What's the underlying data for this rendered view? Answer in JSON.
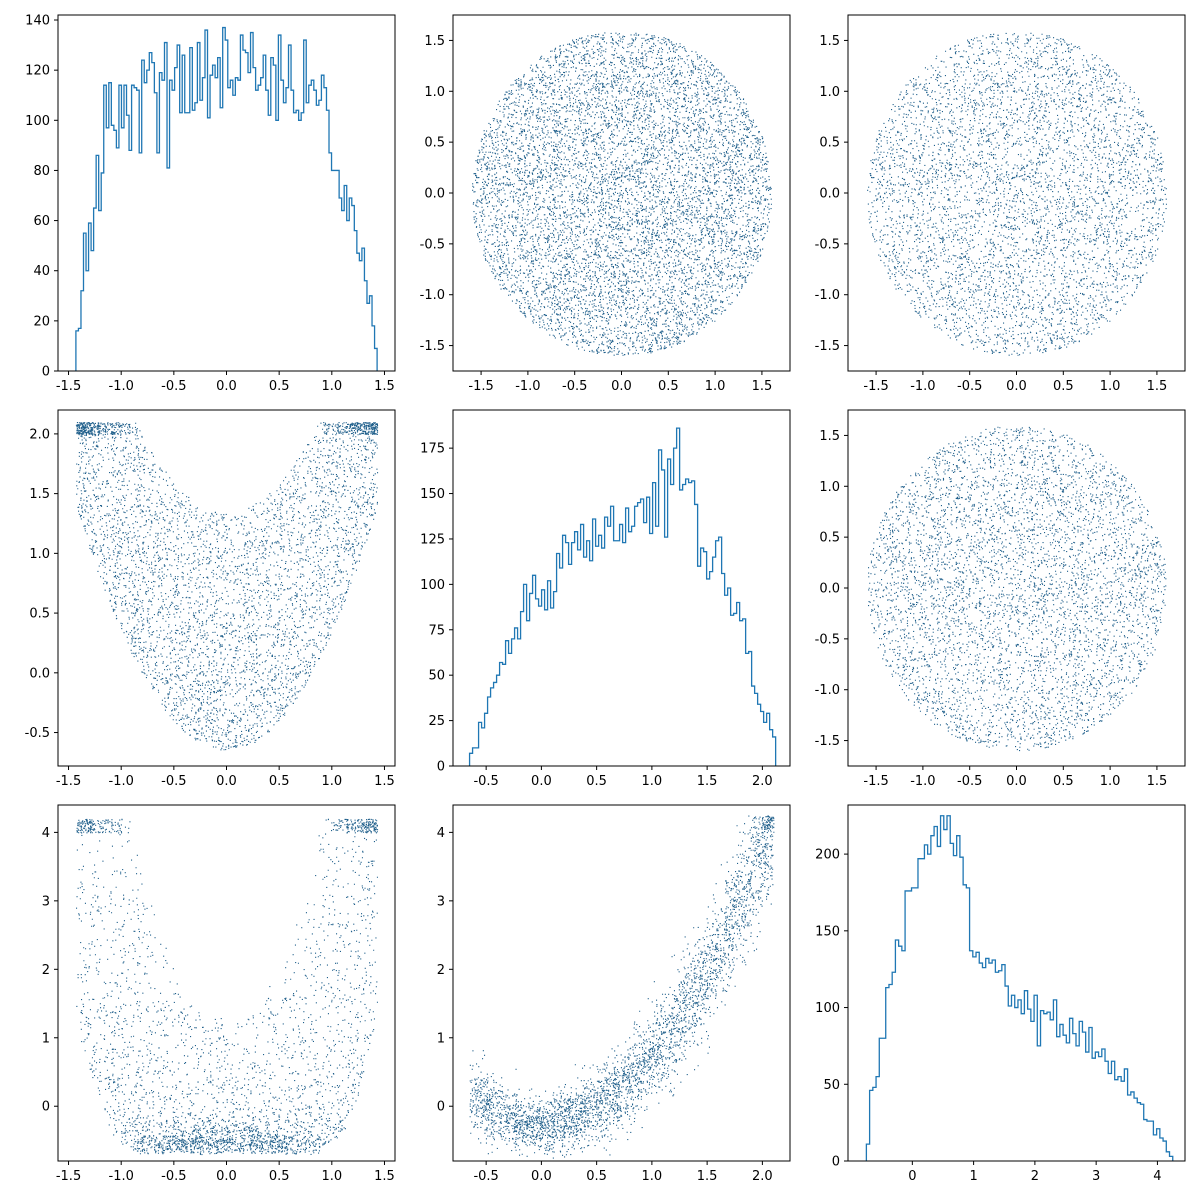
{
  "chart_data": [
    {
      "panel": "hist-x1",
      "type": "histogram",
      "x_range": [
        -1.6,
        1.6
      ],
      "ylim": [
        0,
        142
      ],
      "x_ticks": [
        -1.5,
        -1.0,
        -0.5,
        0.0,
        0.5,
        1.0,
        1.5
      ],
      "y_ticks": [
        0,
        20,
        40,
        60,
        80,
        100,
        120,
        140
      ],
      "bin_range": [
        -1.43,
        1.43
      ],
      "counts": [
        16,
        17,
        32,
        55,
        40,
        59,
        48,
        65,
        86,
        64,
        79,
        114,
        97,
        115,
        98,
        96,
        89,
        114,
        97,
        114,
        102,
        88,
        114,
        113,
        112,
        87,
        124,
        115,
        120,
        127,
        123,
        111,
        87,
        119,
        116,
        131,
        81,
        116,
        112,
        121,
        130,
        103,
        126,
        103,
        103,
        129,
        104,
        107,
        131,
        108,
        117,
        136,
        101,
        118,
        122,
        117,
        125,
        105,
        137,
        132,
        113,
        116,
        110,
        117,
        116,
        134,
        128,
        127,
        119,
        135,
        121,
        112,
        114,
        117,
        126,
        112,
        102,
        125,
        122,
        100,
        134,
        116,
        107,
        113,
        130,
        112,
        103,
        104,
        100,
        103,
        132,
        107,
        114,
        116,
        112,
        106,
        108,
        118,
        113,
        104,
        87,
        80,
        80,
        80,
        69,
        64,
        74,
        60,
        69,
        66,
        56,
        47,
        44,
        49,
        36,
        27,
        30,
        18,
        9
      ]
    },
    {
      "panel": "scatter-x2-vs-x1",
      "type": "scatter",
      "shape": "disk",
      "center": [
        0.0,
        0.0
      ],
      "radius": 1.6,
      "n_points": 9000,
      "xlim": [
        -1.8,
        1.8
      ],
      "ylim": [
        -1.75,
        1.75
      ],
      "x_ticks": [
        -1.5,
        -1.0,
        -0.5,
        0.0,
        0.5,
        1.0,
        1.5
      ],
      "y_ticks": [
        -1.5,
        -1.0,
        -0.5,
        0.0,
        0.5,
        1.0,
        1.5
      ]
    },
    {
      "panel": "scatter-x3-vs-x1",
      "type": "scatter",
      "shape": "disk",
      "center": [
        0.0,
        0.0
      ],
      "radius": 1.6,
      "n_points": 9000,
      "xlim": [
        -1.8,
        1.8
      ],
      "ylim": [
        -1.75,
        1.75
      ],
      "x_ticks": [
        -1.5,
        -1.0,
        -0.5,
        0.0,
        0.5,
        1.0,
        1.5
      ],
      "y_ticks": [
        -1.5,
        -1.0,
        -0.5,
        0.0,
        0.5,
        1.0,
        1.5
      ]
    },
    {
      "panel": "scatter-x1-vs-y",
      "type": "scatter",
      "shape": "parabola-band",
      "relation": "y = x^2 + u, u in [-0.65, 1.35]",
      "x_range": [
        -1.43,
        1.43
      ],
      "n_points": 9000,
      "xlim": [
        -1.6,
        1.6
      ],
      "ylim": [
        -0.78,
        2.2
      ],
      "x_ticks": [
        -1.5,
        -1.0,
        -0.5,
        0.0,
        0.5,
        1.0,
        1.5
      ],
      "y_ticks": [
        -0.5,
        0.0,
        0.5,
        1.0,
        1.5,
        2.0
      ]
    },
    {
      "panel": "hist-x2",
      "type": "histogram",
      "x_range": [
        -0.8,
        2.25
      ],
      "ylim": [
        0,
        196
      ],
      "x_ticks": [
        -0.5,
        0.0,
        0.5,
        1.0,
        1.5,
        2.0
      ],
      "y_ticks": [
        0,
        25,
        50,
        75,
        100,
        125,
        150,
        175
      ],
      "bin_range": [
        -0.65,
        2.12
      ],
      "counts": [
        7,
        10,
        10,
        24,
        21,
        29,
        38,
        43,
        46,
        50,
        57,
        56,
        69,
        62,
        70,
        76,
        70,
        85,
        100,
        80,
        95,
        105,
        92,
        88,
        97,
        86,
        102,
        87,
        96,
        117,
        109,
        127,
        123,
        111,
        123,
        129,
        119,
        133,
        115,
        124,
        113,
        136,
        121,
        127,
        120,
        137,
        132,
        143,
        124,
        124,
        133,
        123,
        142,
        129,
        132,
        143,
        145,
        147,
        134,
        148,
        128,
        156,
        132,
        174,
        163,
        126,
        169,
        155,
        175,
        186,
        152,
        155,
        158,
        156,
        157,
        144,
        110,
        120,
        118,
        103,
        107,
        115,
        124,
        126,
        106,
        94,
        98,
        83,
        84,
        90,
        80,
        81,
        62,
        63,
        44,
        40,
        34,
        30,
        24,
        29,
        20,
        16
      ]
    },
    {
      "panel": "scatter-x3-vs-x2",
      "type": "scatter",
      "shape": "disk",
      "center": [
        0.0,
        0.0
      ],
      "radius": 1.6,
      "n_points": 9000,
      "xlim": [
        -1.8,
        1.8
      ],
      "ylim": [
        -1.75,
        1.75
      ],
      "x_ticks": [
        -1.5,
        -1.0,
        -0.5,
        0.0,
        0.5,
        1.0,
        1.5
      ],
      "y_ticks": [
        -1.5,
        -1.0,
        -0.5,
        0.0,
        0.5,
        1.0,
        1.5
      ]
    },
    {
      "panel": "scatter-x1-vs-z",
      "type": "scatter",
      "shape": "quartic-band",
      "relation": "y ≈ (x^2 + u)^2 - 0.6, u in [-0.65, 1.35]",
      "x_range": [
        -1.43,
        1.43
      ],
      "n_points": 9000,
      "xlim": [
        -1.6,
        1.6
      ],
      "ylim": [
        -0.8,
        4.4
      ],
      "x_ticks": [
        -1.5,
        -1.0,
        -0.5,
        0.0,
        0.5,
        1.0,
        1.5
      ],
      "y_ticks": [
        0,
        1,
        2,
        3,
        4
      ]
    },
    {
      "panel": "scatter-y-vs-z",
      "type": "scatter",
      "shape": "curved-band",
      "relation": "y ≈ x^2 - 0.6 + v, x in [-0.65, 2.1]",
      "x_range": [
        -0.65,
        2.1
      ],
      "n_points": 9000,
      "xlim": [
        -0.8,
        2.25
      ],
      "ylim": [
        -0.8,
        4.4
      ],
      "x_ticks": [
        -0.5,
        0.0,
        0.5,
        1.0,
        1.5,
        2.0
      ],
      "y_ticks": [
        0,
        1,
        2,
        3,
        4
      ]
    },
    {
      "panel": "hist-z",
      "type": "histogram",
      "x_range": [
        -1.05,
        4.45
      ],
      "ylim": [
        0,
        232
      ],
      "x_ticks": [
        0,
        1,
        2,
        3,
        4
      ],
      "y_ticks": [
        0,
        50,
        100,
        150,
        200
      ],
      "bin_range": [
        -0.75,
        4.25
      ],
      "counts": [
        11,
        46,
        48,
        55,
        80,
        80,
        113,
        115,
        123,
        144,
        140,
        137,
        176,
        176,
        178,
        178,
        197,
        197,
        206,
        200,
        212,
        218,
        205,
        225,
        216,
        225,
        207,
        199,
        212,
        198,
        180,
        178,
        137,
        133,
        136,
        129,
        126,
        132,
        129,
        131,
        123,
        124,
        128,
        114,
        101,
        108,
        100,
        105,
        96,
        111,
        99,
        91,
        108,
        75,
        98,
        96,
        97,
        92,
        105,
        81,
        89,
        82,
        77,
        93,
        83,
        75,
        91,
        84,
        71,
        87,
        67,
        71,
        68,
        73,
        65,
        57,
        65,
        53,
        55,
        52,
        60,
        43,
        45,
        41,
        38,
        37,
        27,
        26,
        26,
        17,
        21,
        15,
        13,
        6,
        3
      ]
    }
  ]
}
